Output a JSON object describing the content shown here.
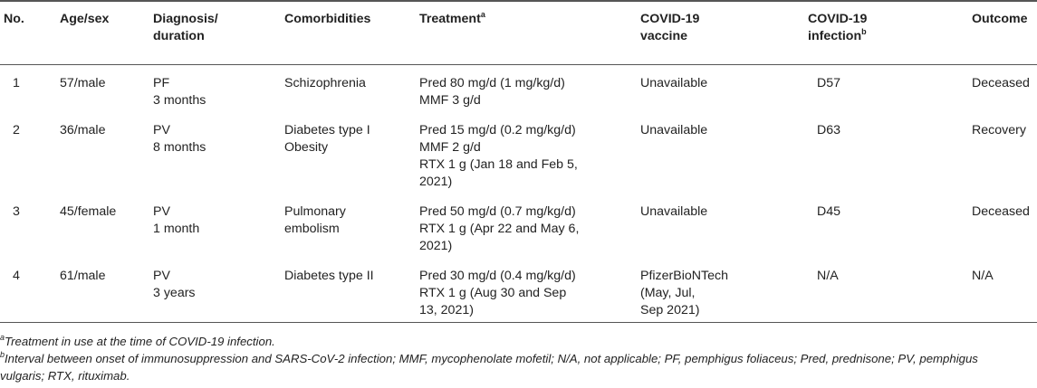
{
  "table": {
    "headers": {
      "no": "No.",
      "age_sex": "Age/sex",
      "diagnosis_line1": "Diagnosis/",
      "diagnosis_line2": "duration",
      "comorbidities": "Comorbidities",
      "treatment": "Treatment",
      "treatment_sup": "a",
      "vaccine_line1": "COVID-19",
      "vaccine_line2": "vaccine",
      "infection_line1": "COVID-19",
      "infection_line2": "infection",
      "infection_sup": "b",
      "outcome": "Outcome"
    },
    "rows": [
      {
        "no": "1",
        "age_sex": "57/male",
        "diagnosis": [
          "PF",
          "3 months"
        ],
        "comorbidities": [
          "Schizophrenia"
        ],
        "treatment": [
          "Pred 80 mg/d (1 mg/kg/d)",
          "MMF 3 g/d"
        ],
        "vaccine": [
          "Unavailable"
        ],
        "infection": "D57",
        "outcome": "Deceased"
      },
      {
        "no": "2",
        "age_sex": "36/male",
        "diagnosis": [
          "PV",
          "8 months"
        ],
        "comorbidities": [
          "Diabetes type I",
          " Obesity"
        ],
        "treatment": [
          "Pred 15 mg/d (0.2 mg/kg/d)",
          "MMF 2 g/d",
          "RTX 1 g (Jan 18 and Feb 5,",
          "2021)"
        ],
        "vaccine": [
          "Unavailable"
        ],
        "infection": "D63",
        "outcome": "Recovery"
      },
      {
        "no": "3",
        "age_sex": "45/female",
        "diagnosis": [
          "PV",
          "1 month"
        ],
        "comorbidities": [
          "Pulmonary",
          "embolism"
        ],
        "treatment": [
          "Pred 50 mg/d (0.7 mg/kg/d)",
          "RTX 1 g (Apr 22 and May 6,",
          "2021)"
        ],
        "vaccine": [
          "Unavailable"
        ],
        "infection": "D45",
        "outcome": "Deceased"
      },
      {
        "no": "4",
        "age_sex": "61/male",
        "diagnosis": [
          "PV",
          "3 years"
        ],
        "comorbidities": [
          "Diabetes type II"
        ],
        "treatment": [
          "Pred 30 mg/d (0.4 mg/kg/d)",
          "RTX 1 g (Aug 30 and Sep",
          "13, 2021)"
        ],
        "vaccine": [
          "PfizerBioNTech",
          "(May, Jul,",
          "Sep 2021)"
        ],
        "infection": "N/A",
        "outcome": "N/A"
      }
    ]
  },
  "footnotes": {
    "a_mark": "a",
    "a_text": "Treatment in use at the time of COVID-19 infection.",
    "b_mark": "b",
    "b_text_line1": "Interval between onset of immunosuppression and SARS-CoV-2 infection; MMF, mycophenolate mofetil; N/A, not applicable; PF, pemphigus foliaceus; Pred, prednisone; PV, pemphigus",
    "b_text_line2": "vulgaris; RTX, rituximab."
  }
}
